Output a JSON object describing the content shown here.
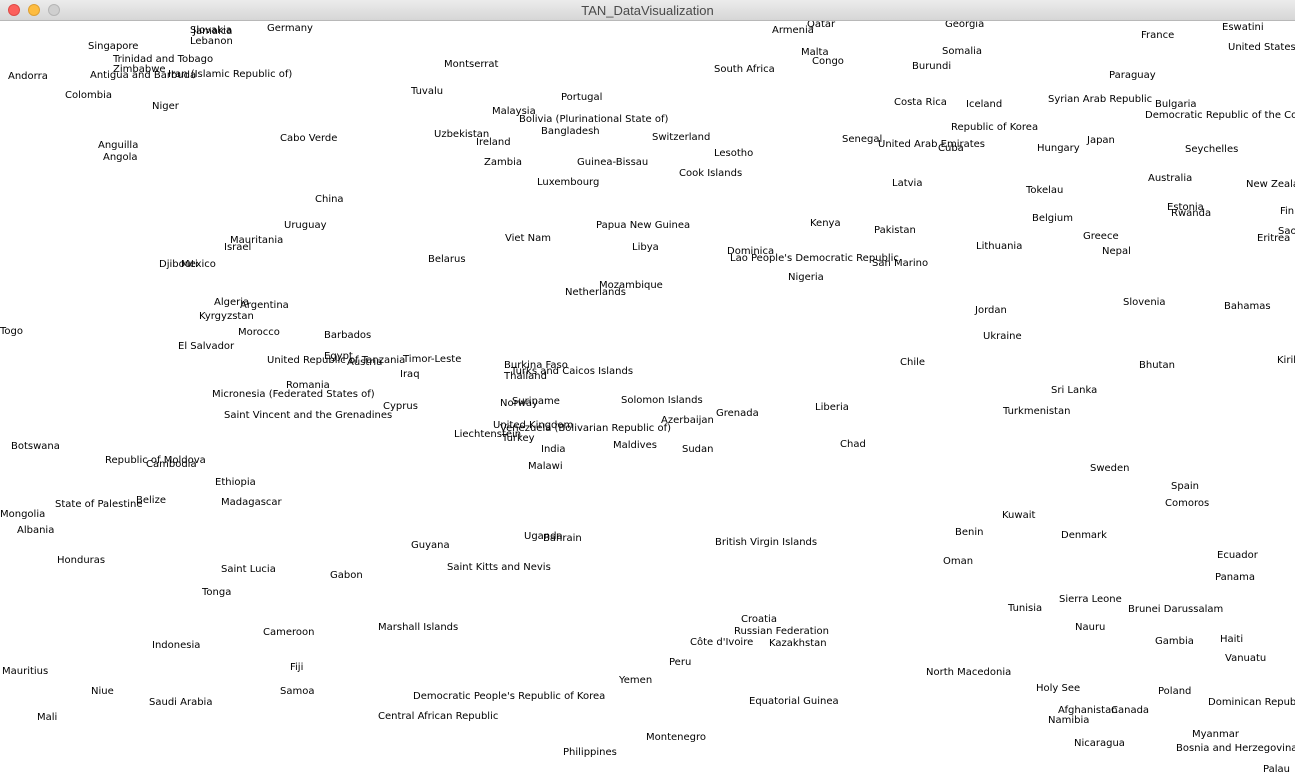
{
  "window": {
    "title": "TAN_DataVisualization",
    "colors": {
      "close": "#fc605c",
      "minimize": "#fdbc40",
      "maximize": "#cfcfcf"
    }
  },
  "countries": [
    "Slovakia",
    "Jamaica",
    "Lebanon",
    "Germany",
    "Singapore",
    "Trinidad and Tobago",
    "Zimbabwe",
    "Antigua and Barbuda",
    "Iran (Islamic Republic of)",
    "Andorra",
    "Colombia",
    "Niger",
    "Montserrat",
    "Tuvalu",
    "Cabo Verde",
    "Anguilla",
    "Angola",
    "Malaysia",
    "Portugal",
    "Bolivia (Plurinational State of)",
    "Uzbekistan",
    "Bangladesh",
    "Ireland",
    "Zambia",
    "Guinea-Bissau",
    "Switzerland",
    "Luxembourg",
    "Cook Islands",
    "Lesotho",
    "China",
    "Uruguay",
    "Mauritania",
    "Israel",
    "Djibouti",
    "Mexico",
    "Belarus",
    "Viet Nam",
    "Papua New Guinea",
    "Libya",
    "Algeria",
    "Argentina",
    "Kyrgyzstan",
    "Morocco",
    "El Salvador",
    "Barbados",
    "United Republic of Tanzania",
    "Egypt",
    "Austria",
    "Timor-Leste",
    "Iraq",
    "Romania",
    "Micronesia (Federated States of)",
    "Saint Vincent and the Grenadines",
    "Cyprus",
    "Burkina Faso",
    "Turks and Caicos Islands",
    "Thailand",
    "Suriname",
    "Norway",
    "United Kingdom",
    "Venezuela (Bolivarian Republic of)",
    "Liechtenstein",
    "Turkey",
    "India",
    "Malawi",
    "Botswana",
    "Republic of Moldova",
    "Cambodia",
    "Ethiopia",
    "State of Palestine",
    "Belize",
    "Madagascar",
    "Mongolia",
    "Albania",
    "Honduras",
    "Guyana",
    "Uganda",
    "Bahrain",
    "Saint Kitts and Nevis",
    "Saint Lucia",
    "Gabon",
    "Tonga",
    "Cameroon",
    "Marshall Islands",
    "Indonesia",
    "Fiji",
    "Mauritius",
    "Niue",
    "Samoa",
    "Saudi Arabia",
    "Mali",
    "Democratic People's Republic of Korea",
    "Central African Republic",
    "Philippines",
    "Mozambique",
    "Netherlands",
    "Solomon Islands",
    "Azerbaijan",
    "Maldives",
    "Grenada",
    "Sudan",
    "Armenia",
    "Qatar",
    "Malta",
    "Congo",
    "South Africa",
    "Georgia",
    "Somalia",
    "Burundi",
    "Costa Rica",
    "Iceland",
    "Senegal",
    "United Arab Emirates",
    "Cuba",
    "Republic of Korea",
    "Latvia",
    "Kenya",
    "Pakistan",
    "Dominica",
    "Lao People's Democratic Republic",
    "San Marino",
    "Nigeria",
    "Chile",
    "Liberia",
    "Chad",
    "British Virgin Islands",
    "Croatia",
    "Russian Federation",
    "Côte d'Ivoire",
    "Kazakhstan",
    "Peru",
    "Yemen",
    "Equatorial Guinea",
    "Montenegro",
    "France",
    "Eswatini",
    "United States",
    "Paraguay",
    "Syrian Arab Republic",
    "Bulgaria",
    "Democratic Republic of the Congo",
    "Japan",
    "Hungary",
    "Seychelles",
    "Australia",
    "Tokelau",
    "New Zealand",
    "Estonia",
    "Rwanda",
    "Finland",
    "Belgium",
    "Greece",
    "Nepal",
    "Eritrea",
    "Sao Tome and Principe",
    "Lithuania",
    "Jordan",
    "Slovenia",
    "Bahamas",
    "Ukraine",
    "Bhutan",
    "Kiribati",
    "Sri Lanka",
    "Turkmenistan",
    "Sweden",
    "Spain",
    "Comoros",
    "Kuwait",
    "Benin",
    "Denmark",
    "Ecuador",
    "Oman",
    "Panama",
    "Sierra Leone",
    "Tunisia",
    "Brunei Darussalam",
    "Nauru",
    "Gambia",
    "Haiti",
    "Vanuatu",
    "North Macedonia",
    "Holy See",
    "Poland",
    "Dominican Republic",
    "Afghanistan",
    "Canada",
    "Namibia",
    "Nicaragua",
    "Myanmar",
    "Bosnia and Herzegovina",
    "Palau",
    "Togo"
  ]
}
